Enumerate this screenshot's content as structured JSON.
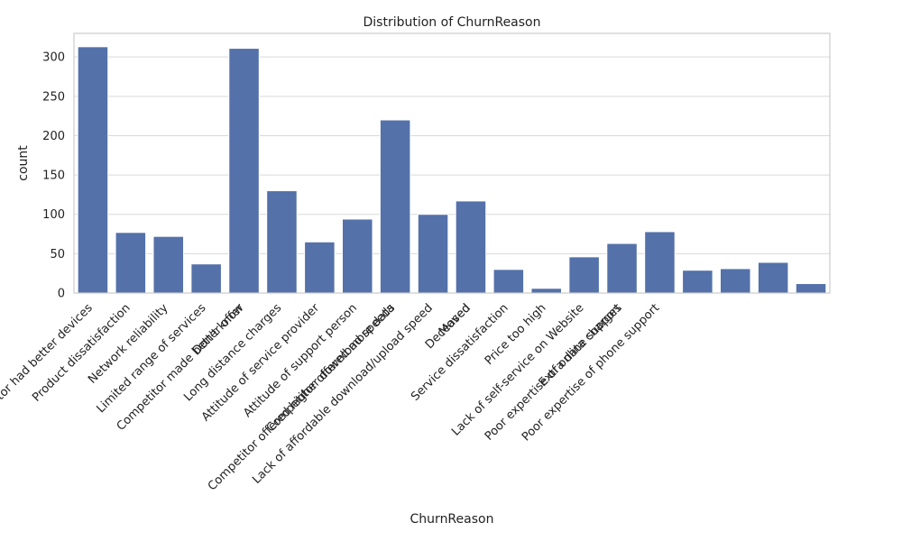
{
  "chart_data": {
    "type": "bar",
    "title": "Distribution of ChurnReason",
    "xlabel": "ChurnReason",
    "ylabel": "count",
    "ylim": [
      0,
      330
    ],
    "yticks": [
      0,
      50,
      100,
      150,
      200,
      250,
      300
    ],
    "grid": "horizontal",
    "bar_color": "#5471a9",
    "categories": [
      "Competitor had better devices",
      "Product dissatisfaction",
      "Network reliability",
      "Limited range of services",
      "Competitor made better offer",
      "Don't know",
      "Long distance charges",
      "Attitude of service provider",
      "Attitude of support person",
      "Competitor offered higher download speeds",
      "Competitor offered more data",
      "Lack of affordable download/upload speed",
      "Deceased",
      "Moved",
      "Service dissatisfaction",
      "Price too high",
      "Lack of self-service on Website",
      "Poor expertise of online support",
      "Extra data charges",
      "Poor expertise of phone support"
    ],
    "bar_values": [
      313,
      77,
      72,
      37,
      311,
      130,
      65,
      94,
      220,
      100,
      117,
      30,
      6,
      46,
      63,
      78,
      29,
      31,
      39,
      12
    ],
    "bar_slots": [
      0,
      1,
      2,
      3,
      4,
      5,
      6,
      7,
      8,
      9,
      10,
      11,
      12,
      13,
      14,
      15,
      16,
      17,
      18,
      19
    ],
    "label_slots": [
      0,
      1,
      2,
      3,
      4,
      4,
      5,
      6,
      7,
      8,
      8,
      9,
      10,
      10,
      11,
      12,
      13,
      14,
      14,
      15
    ]
  }
}
